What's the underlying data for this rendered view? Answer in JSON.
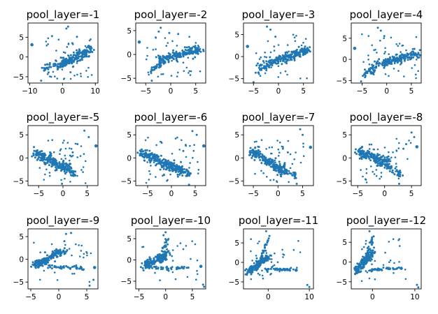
{
  "point_color": "#1f77b4",
  "chart_data": [
    {
      "type": "scatter",
      "title": "pool_layer=-1",
      "xlim": [
        -10.5,
        10.8
      ],
      "ylim": [
        -6.6,
        8.6
      ],
      "xticks": [
        {
          "v": -10,
          "label": "−10"
        },
        {
          "v": 0,
          "label": "0"
        },
        {
          "v": 10,
          "label": "10"
        }
      ],
      "yticks": [
        {
          "v": -5,
          "label": "−5"
        },
        {
          "v": 0,
          "label": "0"
        },
        {
          "v": 5,
          "label": "5"
        }
      ],
      "clusters": [
        {
          "x0": -2,
          "y0": -2.5,
          "x1": 8.5,
          "y1": 1.8,
          "n": 190,
          "w": 1.1
        },
        {
          "x0": -6,
          "y0": -3,
          "x1": -2,
          "y1": -2,
          "n": 25,
          "w": 0.8
        }
      ],
      "outliers": [
        [
          -9.3,
          3.1
        ],
        [
          -6.5,
          -6
        ],
        [
          -3.2,
          5.3
        ],
        [
          1.2,
          7.2
        ],
        [
          1.7,
          7.7
        ],
        [
          4.4,
          5.1
        ],
        [
          3,
          3.5
        ]
      ],
      "scatter": {
        "seed": 11,
        "n": 50,
        "x0": -5,
        "x1": 9,
        "y0": -6,
        "y1": 5
      }
    },
    {
      "type": "scatter",
      "title": "pool_layer=-2",
      "xlim": [
        -7,
        7
      ],
      "ylim": [
        -6,
        6.6
      ],
      "xticks": [
        {
          "v": -5,
          "label": "−5"
        },
        {
          "v": 0,
          "label": "0"
        },
        {
          "v": 5,
          "label": "5"
        }
      ],
      "yticks": [
        {
          "v": -5,
          "label": "−5"
        },
        {
          "v": 0,
          "label": "0"
        },
        {
          "v": 5,
          "label": "5"
        }
      ],
      "clusters": [
        {
          "x0": -2,
          "y0": -1,
          "x1": 6,
          "y1": 1.2,
          "n": 180,
          "w": 0.9
        },
        {
          "x0": -4,
          "y0": -3.5,
          "x1": -1.5,
          "y1": -1.2,
          "n": 40,
          "w": 0.7
        }
      ],
      "outliers": [
        [
          -6.3,
          2.6
        ],
        [
          -3.8,
          -5.5
        ],
        [
          -2,
          5.6
        ],
        [
          -2.4,
          4.8
        ],
        [
          -0.3,
          4.5
        ],
        [
          1.5,
          4.3
        ]
      ],
      "scatter": {
        "seed": 12,
        "n": 45,
        "x0": -5,
        "x1": 6,
        "y0": -5,
        "y1": 4
      }
    },
    {
      "type": "scatter",
      "title": "pool_layer=-3",
      "xlim": [
        -7,
        7
      ],
      "ylim": [
        -6,
        7.6
      ],
      "xticks": [
        {
          "v": -5,
          "label": "−5"
        },
        {
          "v": 0,
          "label": "0"
        },
        {
          "v": 5,
          "label": "5"
        }
      ],
      "yticks": [
        {
          "v": -5,
          "label": "−5"
        },
        {
          "v": 0,
          "label": "0"
        },
        {
          "v": 5,
          "label": "5"
        }
      ],
      "clusters": [
        {
          "x0": -2.5,
          "y0": -1.8,
          "x1": 6,
          "y1": 1.5,
          "n": 190,
          "w": 0.9
        },
        {
          "x0": -4.5,
          "y0": -3,
          "x1": -2,
          "y1": -2,
          "n": 30,
          "w": 0.8
        }
      ],
      "outliers": [
        [
          -6.2,
          2.3
        ],
        [
          -5,
          -5.8
        ],
        [
          -2.3,
          6.8
        ],
        [
          -1.6,
          6.1
        ],
        [
          -0.6,
          4.5
        ]
      ],
      "scatter": {
        "seed": 13,
        "n": 45,
        "x0": -5,
        "x1": 6,
        "y0": -5.5,
        "y1": 5
      }
    },
    {
      "type": "scatter",
      "title": "pool_layer=-4",
      "xlim": [
        -7.2,
        7
      ],
      "ylim": [
        -5.6,
        8.6
      ],
      "xticks": [
        {
          "v": -5,
          "label": "−5"
        },
        {
          "v": 0,
          "label": "0"
        },
        {
          "v": 5,
          "label": "5"
        }
      ],
      "yticks": [
        {
          "v": -5,
          "label": "−5"
        },
        {
          "v": 0,
          "label": "0"
        },
        {
          "v": 5,
          "label": "5"
        }
      ],
      "clusters": [
        {
          "x0": -2,
          "y0": -1.2,
          "x1": 6.5,
          "y1": 1.5,
          "n": 180,
          "w": 0.9
        },
        {
          "x0": -5,
          "y0": -4,
          "x1": -2,
          "y1": -1.5,
          "n": 40,
          "w": 0.8
        }
      ],
      "outliers": [
        [
          -6.5,
          2.6
        ],
        [
          -5.2,
          -5.2
        ],
        [
          -1.8,
          7.5
        ],
        [
          -1.2,
          6.8
        ],
        [
          -0.5,
          5.5
        ]
      ],
      "scatter": {
        "seed": 14,
        "n": 45,
        "x0": -5.5,
        "x1": 6.5,
        "y0": -5,
        "y1": 6
      }
    },
    {
      "type": "scatter",
      "title": "pool_layer=-5",
      "xlim": [
        -7.2,
        7.2
      ],
      "ylim": [
        -6,
        7
      ],
      "xticks": [
        {
          "v": -5,
          "label": "−5"
        },
        {
          "v": 0,
          "label": "0"
        },
        {
          "v": 5,
          "label": "5"
        }
      ],
      "yticks": [
        {
          "v": -5,
          "label": "−5"
        },
        {
          "v": 0,
          "label": "0"
        },
        {
          "v": 5,
          "label": "5"
        }
      ],
      "clusters": [
        {
          "x0": -6,
          "y0": 1.3,
          "x1": 1,
          "y1": -2.5,
          "n": 200,
          "w": 1.0
        },
        {
          "x0": 0,
          "y0": -1.5,
          "x1": 2.5,
          "y1": -3.5,
          "n": 40,
          "w": 0.8
        }
      ],
      "outliers": [
        [
          6.8,
          2.6
        ],
        [
          4.4,
          5.9
        ],
        [
          5.3,
          4.5
        ],
        [
          -0.2,
          -5.6
        ],
        [
          2,
          1.2
        ],
        [
          1.5,
          0.5
        ],
        [
          3,
          3
        ]
      ],
      "scatter": {
        "seed": 15,
        "n": 45,
        "x0": -5,
        "x1": 5,
        "y0": -5.5,
        "y1": 4
      }
    },
    {
      "type": "scatter",
      "title": "pool_layer=-6",
      "xlim": [
        -7.5,
        7.2
      ],
      "ylim": [
        -6,
        7
      ],
      "xticks": [
        {
          "v": -5,
          "label": "−5"
        },
        {
          "v": 0,
          "label": "0"
        },
        {
          "v": 5,
          "label": "5"
        }
      ],
      "yticks": [
        {
          "v": -5,
          "label": "−5"
        },
        {
          "v": 0,
          "label": "0"
        },
        {
          "v": 5,
          "label": "5"
        }
      ],
      "clusters": [
        {
          "x0": -6.5,
          "y0": 1.2,
          "x1": 2,
          "y1": -2.8,
          "n": 200,
          "w": 1.0
        },
        {
          "x0": 1,
          "y0": -2,
          "x1": 4,
          "y1": -3.5,
          "n": 40,
          "w": 0.7
        }
      ],
      "outliers": [
        [
          6.8,
          2.6
        ],
        [
          4.4,
          5.8
        ],
        [
          5.3,
          5
        ],
        [
          3.7,
          -5.8
        ],
        [
          2.5,
          1.5
        ],
        [
          3,
          2.8
        ]
      ],
      "scatter": {
        "seed": 16,
        "n": 45,
        "x0": -5.5,
        "x1": 6,
        "y0": -5.5,
        "y1": 4.5
      }
    },
    {
      "type": "scatter",
      "title": "pool_layer=-7",
      "xlim": [
        -7,
        7.2
      ],
      "ylim": [
        -6,
        7
      ],
      "xticks": [
        {
          "v": -5,
          "label": "−5"
        },
        {
          "v": 0,
          "label": "0"
        },
        {
          "v": 5,
          "label": "5"
        }
      ],
      "yticks": [
        {
          "v": -5,
          "label": "−5"
        },
        {
          "v": 0,
          "label": "0"
        },
        {
          "v": 5,
          "label": "5"
        }
      ],
      "clusters": [
        {
          "x0": -5.5,
          "y0": 1.5,
          "x1": 1.5,
          "y1": -3,
          "n": 200,
          "w": 1.0
        },
        {
          "x0": 0.5,
          "y0": -2.5,
          "x1": 3.5,
          "y1": -3.8,
          "n": 35,
          "w": 0.7
        }
      ],
      "outliers": [
        [
          6.6,
          2.3
        ],
        [
          4.5,
          6.2
        ],
        [
          5,
          5
        ],
        [
          3.8,
          -5.6
        ],
        [
          1,
          2
        ],
        [
          2,
          1.2
        ]
      ],
      "scatter": {
        "seed": 17,
        "n": 45,
        "x0": -5,
        "x1": 5.5,
        "y0": -5.5,
        "y1": 4
      }
    },
    {
      "type": "scatter",
      "title": "pool_layer=-8",
      "xlim": [
        -6.2,
        6.8
      ],
      "ylim": [
        -6,
        7
      ],
      "xticks": [
        {
          "v": -5,
          "label": "−5"
        },
        {
          "v": 0,
          "label": "0"
        },
        {
          "v": 5,
          "label": "5"
        }
      ],
      "yticks": [
        {
          "v": -5,
          "label": "−5"
        },
        {
          "v": 0,
          "label": "0"
        },
        {
          "v": 5,
          "label": "5"
        }
      ],
      "clusters": [
        {
          "x0": -5,
          "y0": 1.4,
          "x1": 0.5,
          "y1": -1,
          "n": 180,
          "w": 0.9
        },
        {
          "x0": -1,
          "y0": -1,
          "x1": 3,
          "y1": -3.5,
          "n": 50,
          "w": 0.7
        }
      ],
      "outliers": [
        [
          6,
          2.4
        ],
        [
          5,
          5.5
        ],
        [
          5.5,
          4.5
        ],
        [
          2.7,
          -5.6
        ],
        [
          3.5,
          2
        ],
        [
          4,
          3
        ]
      ],
      "scatter": {
        "seed": 18,
        "n": 45,
        "x0": -4.5,
        "x1": 5,
        "y0": -5.5,
        "y1": 4.5
      }
    },
    {
      "type": "scatter",
      "title": "pool_layer=-9",
      "xlim": [
        -5.5,
        7
      ],
      "ylim": [
        -6.5,
        6.7
      ],
      "xticks": [
        {
          "v": -5,
          "label": "−5"
        },
        {
          "v": 0,
          "label": "0"
        },
        {
          "v": 5,
          "label": "5"
        }
      ],
      "yticks": [
        {
          "v": -5,
          "label": "−5"
        },
        {
          "v": 0,
          "label": "0"
        },
        {
          "v": 5,
          "label": "5"
        }
      ],
      "clusters": [
        {
          "x0": -4.5,
          "y0": -1.5,
          "x1": 1,
          "y1": 2,
          "n": 170,
          "w": 0.8
        },
        {
          "x0": -2,
          "y0": -1.5,
          "x1": 5,
          "y1": -2,
          "n": 45,
          "w": 0.4
        }
      ],
      "outliers": [
        [
          6.4,
          -1.8
        ],
        [
          6.2,
          -4.5
        ],
        [
          5.5,
          -5.8
        ],
        [
          2.2,
          5.8
        ],
        [
          1.3,
          5.6
        ],
        [
          1,
          4
        ]
      ],
      "scatter": {
        "seed": 19,
        "n": 30,
        "x0": -4.5,
        "x1": 6,
        "y0": -5,
        "y1": 4.5
      }
    },
    {
      "type": "scatter",
      "title": "pool_layer=-10",
      "xlim": [
        -5.6,
        7.5
      ],
      "ylim": [
        -6.8,
        7.3
      ],
      "xticks": [
        {
          "v": -5,
          "label": "−5"
        },
        {
          "v": 0,
          "label": "0"
        },
        {
          "v": 5,
          "label": "5"
        }
      ],
      "yticks": [
        {
          "v": -5,
          "label": "−5"
        },
        {
          "v": 0,
          "label": "0"
        },
        {
          "v": 5,
          "label": "5"
        }
      ],
      "clusters": [
        {
          "x0": -4,
          "y0": -1.5,
          "x1": 0.5,
          "y1": 1.5,
          "n": 150,
          "w": 0.9
        },
        {
          "x0": -1,
          "y0": 0,
          "x1": 0.5,
          "y1": 5,
          "n": 35,
          "w": 0.5
        },
        {
          "x0": -2,
          "y0": -2,
          "x1": 5,
          "y1": -1.8,
          "n": 35,
          "w": 0.4
        }
      ],
      "outliers": [
        [
          6.6,
          -1.5
        ],
        [
          7,
          -5.8
        ],
        [
          7.2,
          -6.3
        ],
        [
          0,
          6.5
        ],
        [
          -0.4,
          5.8
        ]
      ],
      "scatter": {
        "seed": 20,
        "n": 30,
        "x0": -4.5,
        "x1": 6,
        "y0": -5,
        "y1": 4.5
      }
    },
    {
      "type": "scatter",
      "title": "pool_layer=-11",
      "xlim": [
        -6,
        11
      ],
      "ylim": [
        -6.8,
        8.6
      ],
      "xticks": [
        {
          "v": 0,
          "label": "0"
        },
        {
          "v": 10,
          "label": "10"
        }
      ],
      "yticks": [
        {
          "v": -5,
          "label": "−5"
        },
        {
          "v": 0,
          "label": "0"
        },
        {
          "v": 5,
          "label": "5"
        }
      ],
      "clusters": [
        {
          "x0": -5,
          "y0": -2.5,
          "x1": 0,
          "y1": 1.5,
          "n": 150,
          "w": 0.9
        },
        {
          "x0": -2,
          "y0": 0,
          "x1": 0,
          "y1": 6,
          "n": 35,
          "w": 0.5
        },
        {
          "x0": -1,
          "y0": -1.8,
          "x1": 7,
          "y1": -1.8,
          "n": 40,
          "w": 0.4
        }
      ],
      "outliers": [
        [
          6.8,
          -2
        ],
        [
          9.5,
          -5.8
        ],
        [
          10,
          -6.3
        ],
        [
          -0.5,
          8
        ],
        [
          0.3,
          6.8
        ]
      ],
      "scatter": {
        "seed": 21,
        "n": 30,
        "x0": -5,
        "x1": 8,
        "y0": -5,
        "y1": 6
      }
    },
    {
      "type": "scatter",
      "title": "pool_layer=-12",
      "xlim": [
        -5,
        11.5
      ],
      "ylim": [
        -6.8,
        8.4
      ],
      "xticks": [
        {
          "v": 0,
          "label": "0"
        },
        {
          "v": 10,
          "label": "10"
        }
      ],
      "yticks": [
        {
          "v": -5,
          "label": "−5"
        },
        {
          "v": 0,
          "label": "0"
        },
        {
          "v": 5,
          "label": "5"
        }
      ],
      "clusters": [
        {
          "x0": -4,
          "y0": -2.5,
          "x1": 0,
          "y1": 2.5,
          "n": 150,
          "w": 0.9
        },
        {
          "x0": -2,
          "y0": 0,
          "x1": 0,
          "y1": 6,
          "n": 35,
          "w": 0.5
        },
        {
          "x0": -1,
          "y0": -2,
          "x1": 7,
          "y1": -1.5,
          "n": 40,
          "w": 0.4
        }
      ],
      "outliers": [
        [
          6.8,
          -1.6
        ],
        [
          10.5,
          -5.8
        ],
        [
          10.8,
          -6.4
        ],
        [
          -0.7,
          7.8
        ],
        [
          0.3,
          6.5
        ]
      ],
      "scatter": {
        "seed": 22,
        "n": 30,
        "x0": -4,
        "x1": 8,
        "y0": -5,
        "y1": 6
      }
    }
  ]
}
